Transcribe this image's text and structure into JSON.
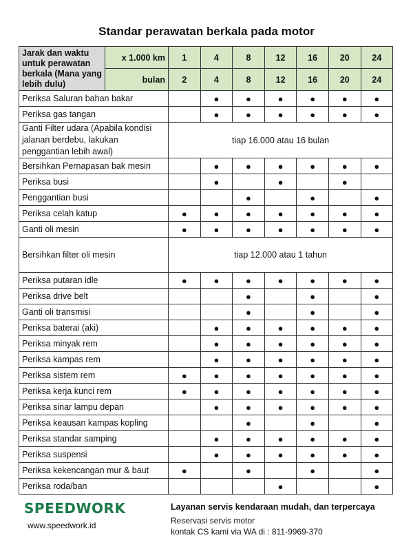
{
  "title": "Standar perawatan berkala pada motor",
  "header": {
    "label": "Jarak dan waktu untuk perawatan berkala (Mana yang lebih dulu)",
    "km_label": "x 1.000 km",
    "km": [
      "1",
      "4",
      "8",
      "12",
      "16",
      "20",
      "24"
    ],
    "month_label": "bulan",
    "months": [
      "2",
      "4",
      "8",
      "12",
      "16",
      "20",
      "24"
    ]
  },
  "dot": "●",
  "rows": [
    {
      "label": "Periksa Saluran bahan bakar",
      "marks": [
        0,
        1,
        1,
        1,
        1,
        1,
        1
      ]
    },
    {
      "label": "Periksa gas tangan",
      "marks": [
        0,
        1,
        1,
        1,
        1,
        1,
        1
      ]
    },
    {
      "label": "Ganti Filter udara (Apabila kondisi jalanan berdebu, lakukan penggantian lebih awal)",
      "note": "tiap 16.000 atau 16 bulan"
    },
    {
      "label": "Bersihkan Pernapasan bak mesin",
      "marks": [
        0,
        1,
        1,
        1,
        1,
        1,
        1
      ]
    },
    {
      "label": "Periksa busi",
      "marks": [
        0,
        1,
        0,
        1,
        0,
        1,
        0
      ]
    },
    {
      "label": "Penggantian busi",
      "marks": [
        0,
        0,
        1,
        0,
        1,
        0,
        1
      ]
    },
    {
      "label": "Periksa celah katup",
      "marks": [
        1,
        1,
        1,
        1,
        1,
        1,
        1
      ]
    },
    {
      "label": "Ganti oli mesin",
      "marks": [
        1,
        1,
        1,
        1,
        1,
        1,
        1
      ]
    },
    {
      "label": "Bersihkan filter oli mesin",
      "note": "tiap 12.000 atau 1 tahun"
    },
    {
      "label": "Periksa putaran idle",
      "marks": [
        1,
        1,
        1,
        1,
        1,
        1,
        1
      ]
    },
    {
      "label": "Periksa drive belt",
      "marks": [
        0,
        0,
        1,
        0,
        1,
        0,
        1
      ]
    },
    {
      "label": "Ganti oli transmisi",
      "marks": [
        0,
        0,
        1,
        0,
        1,
        0,
        1
      ]
    },
    {
      "label": "Periksa baterai (aki)",
      "marks": [
        0,
        1,
        1,
        1,
        1,
        1,
        1
      ]
    },
    {
      "label": "Periksa minyak rem",
      "marks": [
        0,
        1,
        1,
        1,
        1,
        1,
        1
      ]
    },
    {
      "label": "Periksa kampas rem",
      "marks": [
        0,
        1,
        1,
        1,
        1,
        1,
        1
      ]
    },
    {
      "label": "Periksa sistem rem",
      "marks": [
        1,
        1,
        1,
        1,
        1,
        1,
        1
      ]
    },
    {
      "label": "Periksa kerja kunci rem",
      "marks": [
        1,
        1,
        1,
        1,
        1,
        1,
        1
      ]
    },
    {
      "label": "Periksa sinar lampu depan",
      "marks": [
        0,
        1,
        1,
        1,
        1,
        1,
        1
      ]
    },
    {
      "label": "Periksa keausan kampas kopling",
      "marks": [
        0,
        0,
        1,
        0,
        1,
        0,
        1
      ]
    },
    {
      "label": "Periksa standar samping",
      "marks": [
        0,
        1,
        1,
        1,
        1,
        1,
        1
      ]
    },
    {
      "label": "Periksa suspensi",
      "marks": [
        0,
        1,
        1,
        1,
        1,
        1,
        1
      ]
    },
    {
      "label": "Periksa kekencangan mur & baut",
      "marks": [
        1,
        0,
        1,
        0,
        1,
        0,
        1
      ]
    },
    {
      "label": "Periksa roda/ban",
      "marks": [
        0,
        0,
        0,
        1,
        0,
        0,
        1
      ]
    }
  ],
  "footer": {
    "logo": "SPEEDWORK",
    "website": "www.speedwork.id",
    "tagline": "Layanan servis kendaraan mudah, dan terpercaya",
    "line1": "Reservasi servis motor",
    "line2": "kontak CS kami via WA di : 811-9969-370"
  },
  "colors": {
    "header_green": "#d6e7c6",
    "header_gray": "#d9d9d9",
    "brand_green": "#1e7a4a"
  }
}
